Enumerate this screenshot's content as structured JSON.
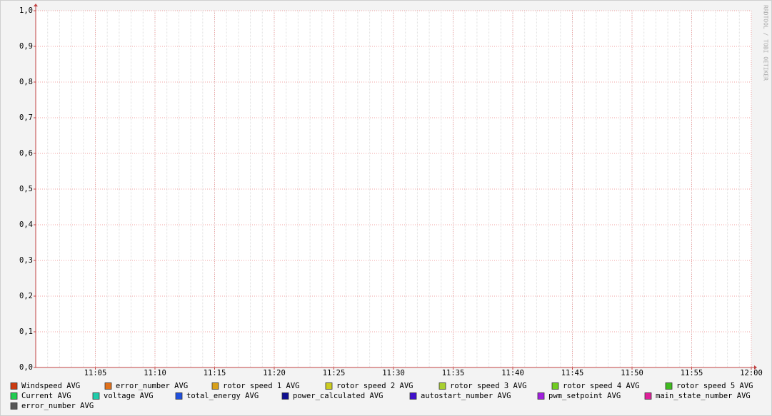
{
  "chart_data": {
    "type": "line",
    "watermark": "RRDTOOL / TOBI OETIKER",
    "xlim": [
      660,
      720
    ],
    "xticks": [
      {
        "value": 665,
        "label": "11:05"
      },
      {
        "value": 670,
        "label": "11:10"
      },
      {
        "value": 675,
        "label": "11:15"
      },
      {
        "value": 680,
        "label": "11:20"
      },
      {
        "value": 685,
        "label": "11:25"
      },
      {
        "value": 690,
        "label": "11:30"
      },
      {
        "value": 695,
        "label": "11:35"
      },
      {
        "value": 700,
        "label": "11:40"
      },
      {
        "value": 705,
        "label": "11:45"
      },
      {
        "value": 710,
        "label": "11:50"
      },
      {
        "value": 715,
        "label": "11:55"
      },
      {
        "value": 720,
        "label": "12:00"
      }
    ],
    "ylim": [
      0,
      1
    ],
    "yticks": [
      {
        "value": 0,
        "label": "0,0"
      },
      {
        "value": 0.1,
        "label": "0,1"
      },
      {
        "value": 0.2,
        "label": "0,2"
      },
      {
        "value": 0.3,
        "label": "0,3"
      },
      {
        "value": 0.4,
        "label": "0,4"
      },
      {
        "value": 0.5,
        "label": "0,5"
      },
      {
        "value": 0.6,
        "label": "0,6"
      },
      {
        "value": 0.7,
        "label": "0,7"
      },
      {
        "value": 0.8,
        "label": "0,8"
      },
      {
        "value": 0.9,
        "label": "0,9"
      },
      {
        "value": 1,
        "label": "1,0"
      }
    ],
    "grid": true,
    "series": [
      {
        "name": "Windspeed AVG",
        "color": "#cc3a10"
      },
      {
        "name": "error_number AVG",
        "color": "#e0701a"
      },
      {
        "name": "rotor speed 1 AVG",
        "color": "#d8a018"
      },
      {
        "name": "rotor speed 2 AVG",
        "color": "#cccc20"
      },
      {
        "name": "rotor speed 3 AVG",
        "color": "#a8d030"
      },
      {
        "name": "rotor speed 4 AVG",
        "color": "#70cc20"
      },
      {
        "name": "rotor speed 5 AVG",
        "color": "#40bb20"
      },
      {
        "name": "Current AVG",
        "color": "#20cc50"
      },
      {
        "name": "voltage AVG",
        "color": "#20ccaa"
      },
      {
        "name": "total_energy AVG",
        "color": "#2050dd"
      },
      {
        "name": "power_calculated AVG",
        "color": "#101090"
      },
      {
        "name": "autostart_number AVG",
        "color": "#4010cc"
      },
      {
        "name": "pwm_setpoint AVG",
        "color": "#a020dd"
      },
      {
        "name": "main_state_number AVG",
        "color": "#dd2099"
      },
      {
        "name": "error_number AVG",
        "color": "#555555"
      }
    ]
  }
}
